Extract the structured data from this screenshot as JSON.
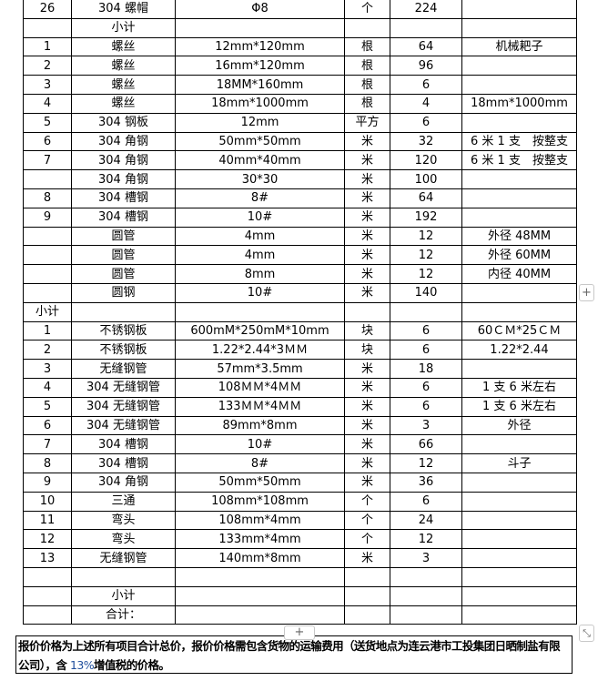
{
  "table": {
    "rows": [
      [
        "26",
        "304 螺帽",
        "Φ8",
        "个",
        "224",
        ""
      ],
      [
        "",
        "小计",
        "",
        "",
        "",
        ""
      ],
      [
        "1",
        "螺丝",
        "12mm*120mm",
        "根",
        "64",
        "机械耙子"
      ],
      [
        "2",
        "螺丝",
        "16mm*120mm",
        "根",
        "96",
        ""
      ],
      [
        "3",
        "螺丝",
        "18MM*160mm",
        "根",
        "6",
        ""
      ],
      [
        "4",
        "螺丝",
        "18mm*1000mm",
        "根",
        "4",
        "18mm*1000mm"
      ],
      [
        "5",
        "304 钢板",
        "12mm",
        "平方",
        "6",
        ""
      ],
      [
        "6",
        "304 角钢",
        "50mm*50mm",
        "米",
        "32",
        "6 米 1 支　按整支"
      ],
      [
        "7",
        "304 角钢",
        "40mm*40mm",
        "米",
        "120",
        "6 米 1 支　按整支"
      ],
      [
        "",
        "304 角钢",
        "30*30",
        "米",
        "100",
        ""
      ],
      [
        "8",
        "304 槽钢",
        "8#",
        "米",
        "64",
        ""
      ],
      [
        "9",
        "304 槽钢",
        "10#",
        "米",
        "192",
        ""
      ],
      [
        "",
        "圆管",
        "4mm",
        "米",
        "12",
        "外径 48MM"
      ],
      [
        "",
        "圆管",
        "4mm",
        "米",
        "12",
        "外径 60MM"
      ],
      [
        "",
        "圆管",
        "8mm",
        "米",
        "12",
        "内径 40MM"
      ],
      [
        "",
        "圆钢",
        "10#",
        "米",
        "140",
        ""
      ],
      [
        "小计",
        "",
        "",
        "",
        "",
        ""
      ],
      [
        "1",
        "不锈钢板",
        "600mM*250mM*10mm",
        "块",
        "6",
        "60ＣＭ*25ＣＭ"
      ],
      [
        "2",
        "不锈钢板",
        "1.22*2.44*3ＭＭ",
        "块",
        "6",
        "1.22*2.44"
      ],
      [
        "3",
        "无缝钢管",
        "57mm*3.5mm",
        "米",
        "18",
        ""
      ],
      [
        "4",
        "304 无缝钢管",
        "108ＭＭ*4ＭＭ",
        "米",
        "6",
        "1 支 6 米左右"
      ],
      [
        "5",
        "304 无缝钢管",
        "133ＭＭ*4ＭＭ",
        "米",
        "6",
        "1 支 6 米左右"
      ],
      [
        "6",
        "304 无缝钢管",
        "89mm*8mm",
        "米",
        "3",
        "外径"
      ],
      [
        "7",
        "304 槽钢",
        "10#",
        "米",
        "66",
        ""
      ],
      [
        "8",
        "304 槽钢",
        "8#",
        "米",
        "12",
        "斗子"
      ],
      [
        "9",
        "304 角钢",
        "50mm*50mm",
        "米",
        "36",
        ""
      ],
      [
        "10",
        "三通",
        "108mm*108mm",
        "个",
        "6",
        ""
      ],
      [
        "11",
        "弯头",
        "108mm*4mm",
        "个",
        "24",
        ""
      ],
      [
        "12",
        "弯头",
        "133mm*4mm",
        "个",
        "12",
        ""
      ],
      [
        "13",
        "无缝钢管",
        "140mm*8mm",
        "米",
        "3",
        ""
      ],
      [
        "",
        "",
        "",
        "",
        "",
        ""
      ],
      [
        "",
        "小计",
        "",
        "",
        "",
        ""
      ],
      [
        "",
        "合计：",
        "",
        "",
        "",
        ""
      ]
    ]
  },
  "note": {
    "part1": "报价价格为上述所有项目合计总价，报价价格需包含货物的运输费用（送货地点为连云港市工投集团日晒制盐有限公司），含 ",
    "percent": "13%",
    "part2": "增值税的价格。"
  },
  "controls": {
    "add_row_label": "+",
    "add_col_label": "+",
    "resize_label": "⤡"
  }
}
